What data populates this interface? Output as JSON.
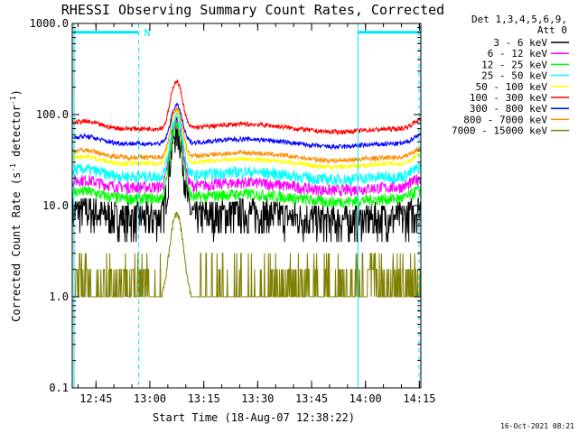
{
  "chart_data": {
    "type": "line",
    "title": "RHESSI Observing Summary Count Rates, Corrected",
    "xlabel": "Start Time (18-Aug-07 12:38:22)",
    "ylabel_main": "Corrected Count Rate (s",
    "ylabel_sup1": "-1",
    "ylabel_mid": " detector",
    "ylabel_sup2": "-1",
    "ylabel_end": ")",
    "y_scale": "log",
    "ylim": [
      0.1,
      1000
    ],
    "x_range_minutes": [
      0,
      97
    ],
    "yticks": [
      {
        "v": 1000,
        "label": "1000.0"
      },
      {
        "v": 100,
        "label": "100.0"
      },
      {
        "v": 10,
        "label": "10.0"
      },
      {
        "v": 1,
        "label": "1.0"
      },
      {
        "v": 0.1,
        "label": "0.1"
      }
    ],
    "xticks": [
      {
        "t": 6.6,
        "label": "12:45"
      },
      {
        "t": 21.6,
        "label": "13:00"
      },
      {
        "t": 36.6,
        "label": "13:15"
      },
      {
        "t": 51.6,
        "label": "13:30"
      },
      {
        "t": 66.6,
        "label": "13:45"
      },
      {
        "t": 81.6,
        "label": "14:00"
      },
      {
        "t": 96.6,
        "label": "14:15"
      }
    ],
    "legend_header1": "Det 1,3,4,5,6,9,",
    "legend_header2": "Att 0",
    "legend_position": "top-right",
    "night_label": "N",
    "intervals": [
      {
        "type": "night",
        "start": 0.5,
        "end": 18.5,
        "level": 800
      },
      {
        "type": "night",
        "start": 79.5,
        "end": 97,
        "level": 800
      }
    ],
    "vertical_markers": [
      0.5,
      18.5,
      79.5,
      96.5
    ],
    "flare": {
      "peak_time": 29.0,
      "width_min": 1.9
    },
    "series": [
      {
        "name": "3 - 6 keV",
        "color": "#000000",
        "base": 7.5,
        "peak": 65
      },
      {
        "name": "6 - 12 keV",
        "color": "#ff00ff",
        "base": 16,
        "peak": 80
      },
      {
        "name": "12 - 25 keV",
        "color": "#00ff00",
        "base": 12,
        "peak": 75
      },
      {
        "name": "25 - 50 keV",
        "color": "#00ffff",
        "base": 21,
        "peak": 95
      },
      {
        "name": "50 - 100 keV",
        "color": "#ffff00",
        "base": 29,
        "peak": 110
      },
      {
        "name": "100 - 300 keV",
        "color": "#ff0000",
        "base": 70,
        "peak": 230
      },
      {
        "name": "300 - 800 keV",
        "color": "#0000ff",
        "base": 48,
        "peak": 125
      },
      {
        "name": "800 - 7000 keV",
        "color": "#ff8c00",
        "base": 34,
        "peak": 115
      },
      {
        "name": "7000 - 15000 keV",
        "color": "#808000",
        "base": 1.0,
        "peak": 8
      }
    ]
  },
  "timestamp": "16-Oct-2021 08:21"
}
